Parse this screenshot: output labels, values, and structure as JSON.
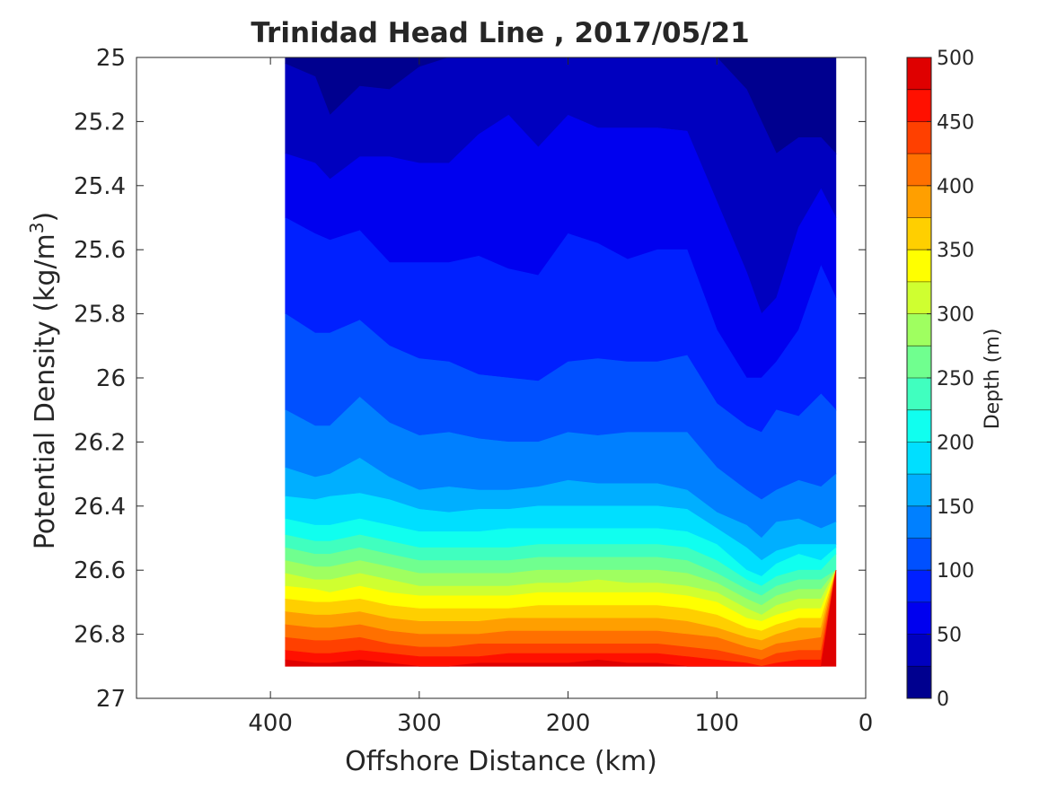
{
  "chart_data": {
    "type": "contour",
    "title": "Trinidad Head Line , 2017/05/21",
    "xlabel": "Offshore Distance (km)",
    "ylabel": "Potential Density (kg/m",
    "ylabel_superscript": "3",
    "ylabel_close": ")",
    "x_reversed": true,
    "y_reversed": true,
    "xlim": [
      490,
      0
    ],
    "ylim": [
      25,
      27
    ],
    "xticks": [
      400,
      300,
      200,
      100,
      0
    ],
    "xtick_labels": [
      "400",
      "300",
      "200",
      "100",
      "0"
    ],
    "yticks": [
      25,
      25.2,
      25.4,
      25.6,
      25.8,
      26,
      26.2,
      26.4,
      26.6,
      26.8,
      27
    ],
    "ytick_labels": [
      "25",
      "25.2",
      "25.4",
      "25.6",
      "25.8",
      "26",
      "26.2",
      "26.4",
      "26.6",
      "26.8",
      "27"
    ],
    "grid": false,
    "colorbar": {
      "label": "Depth (m)",
      "levels": [
        0,
        25,
        50,
        75,
        100,
        125,
        150,
        175,
        200,
        225,
        250,
        275,
        300,
        325,
        350,
        375,
        400,
        425,
        450,
        475,
        500
      ],
      "tick_values": [
        0,
        50,
        100,
        150,
        200,
        250,
        300,
        350,
        400,
        450,
        500
      ],
      "tick_labels": [
        "0",
        "50",
        "100",
        "150",
        "200",
        "250",
        "300",
        "350",
        "400",
        "450",
        "500"
      ],
      "colors": [
        "#00008f",
        "#0000bf",
        "#0000ef",
        "#0020ff",
        "#0050ff",
        "#0080ff",
        "#00afff",
        "#00dfff",
        "#10ffef",
        "#40ffbf",
        "#70ff8f",
        "#9fff60",
        "#cfff30",
        "#ffff00",
        "#ffcf00",
        "#ff9f00",
        "#ff7000",
        "#ff4000",
        "#ff1000",
        "#df0000",
        "#af0000"
      ]
    },
    "distances_km": [
      390,
      370,
      360,
      340,
      320,
      300,
      280,
      260,
      240,
      220,
      200,
      180,
      160,
      140,
      120,
      100,
      80,
      70,
      60,
      45,
      30,
      20
    ],
    "data_bottom_density": 26.9,
    "isopycnal_depth_contours": [
      {
        "depth": 25,
        "density": [
          25.02,
          25.06,
          25.18,
          25.09,
          25.1,
          25.03,
          25.0,
          25.0,
          25.0,
          25.0,
          25.0,
          25.0,
          25.0,
          25.0,
          25.0,
          25.0,
          25.1,
          25.2,
          25.3,
          25.25,
          25.25,
          25.3
        ]
      },
      {
        "depth": 50,
        "density": [
          25.3,
          25.33,
          25.38,
          25.31,
          25.31,
          25.33,
          25.33,
          25.24,
          25.18,
          25.28,
          25.18,
          25.22,
          25.22,
          25.22,
          25.23,
          25.45,
          25.67,
          25.8,
          25.75,
          25.53,
          25.41,
          25.5
        ]
      },
      {
        "depth": 75,
        "density": [
          25.5,
          25.55,
          25.57,
          25.54,
          25.64,
          25.64,
          25.64,
          25.62,
          25.66,
          25.68,
          25.55,
          25.58,
          25.63,
          25.6,
          25.6,
          25.85,
          26.0,
          26.0,
          25.95,
          25.85,
          25.65,
          25.75
        ]
      },
      {
        "depth": 100,
        "density": [
          25.8,
          25.86,
          25.86,
          25.82,
          25.9,
          25.94,
          25.95,
          25.99,
          26.0,
          26.01,
          25.95,
          25.94,
          25.95,
          25.95,
          25.93,
          26.08,
          26.15,
          26.17,
          26.1,
          26.12,
          26.05,
          26.1
        ]
      },
      {
        "depth": 125,
        "density": [
          26.1,
          26.15,
          26.15,
          26.06,
          26.14,
          26.18,
          26.17,
          26.19,
          26.2,
          26.2,
          26.17,
          26.18,
          26.17,
          26.17,
          26.17,
          26.28,
          26.35,
          26.38,
          26.35,
          26.32,
          26.34,
          26.3
        ]
      },
      {
        "depth": 150,
        "density": [
          26.28,
          26.31,
          26.3,
          26.25,
          26.31,
          26.35,
          26.34,
          26.35,
          26.35,
          26.34,
          26.32,
          26.33,
          26.33,
          26.33,
          26.35,
          26.42,
          26.46,
          26.5,
          26.45,
          26.44,
          26.47,
          26.45
        ]
      },
      {
        "depth": 175,
        "density": [
          26.37,
          26.38,
          26.37,
          26.36,
          26.38,
          26.41,
          26.42,
          26.41,
          26.41,
          26.4,
          26.4,
          26.4,
          26.4,
          26.4,
          26.41,
          26.47,
          26.53,
          26.57,
          26.54,
          26.52,
          26.52,
          26.52
        ]
      },
      {
        "depth": 200,
        "density": [
          26.44,
          26.46,
          26.46,
          26.44,
          26.46,
          26.48,
          26.48,
          26.48,
          26.47,
          26.47,
          26.47,
          26.47,
          26.47,
          26.47,
          26.48,
          26.52,
          26.6,
          26.62,
          26.58,
          26.55,
          26.57,
          26.53
        ]
      },
      {
        "depth": 225,
        "density": [
          26.49,
          26.51,
          26.51,
          26.49,
          26.51,
          26.53,
          26.53,
          26.53,
          26.53,
          26.52,
          26.52,
          26.52,
          26.52,
          26.52,
          26.53,
          26.57,
          26.63,
          26.65,
          26.62,
          26.6,
          26.6,
          26.55
        ]
      },
      {
        "depth": 250,
        "density": [
          26.53,
          26.55,
          26.55,
          26.53,
          26.55,
          26.57,
          26.57,
          26.57,
          26.57,
          26.56,
          26.56,
          26.56,
          26.56,
          26.56,
          26.57,
          26.61,
          26.66,
          26.68,
          26.65,
          26.63,
          26.63,
          26.6
        ]
      },
      {
        "depth": 275,
        "density": [
          26.57,
          26.59,
          26.59,
          26.57,
          26.59,
          26.61,
          26.61,
          26.61,
          26.61,
          26.6,
          26.6,
          26.6,
          26.6,
          26.6,
          26.61,
          26.64,
          26.69,
          26.71,
          26.68,
          26.66,
          26.66,
          26.6
        ]
      },
      {
        "depth": 300,
        "density": [
          26.61,
          26.63,
          26.63,
          26.61,
          26.63,
          26.65,
          26.65,
          26.65,
          26.65,
          26.64,
          26.64,
          26.63,
          26.64,
          26.64,
          26.65,
          26.67,
          26.72,
          26.74,
          26.71,
          26.69,
          26.69,
          26.6
        ]
      },
      {
        "depth": 325,
        "density": [
          26.65,
          26.66,
          26.67,
          26.65,
          26.67,
          26.68,
          26.68,
          26.68,
          26.68,
          26.67,
          26.67,
          26.67,
          26.67,
          26.67,
          26.68,
          26.7,
          26.75,
          26.76,
          26.74,
          26.72,
          26.72,
          26.6
        ]
      },
      {
        "depth": 350,
        "density": [
          26.69,
          26.7,
          26.7,
          26.69,
          26.71,
          26.72,
          26.72,
          26.72,
          26.72,
          26.71,
          26.71,
          26.71,
          26.71,
          26.71,
          26.72,
          26.74,
          26.78,
          26.79,
          26.77,
          26.75,
          26.75,
          26.6
        ]
      },
      {
        "depth": 375,
        "density": [
          26.73,
          26.74,
          26.74,
          26.73,
          26.75,
          26.76,
          26.76,
          26.76,
          26.75,
          26.75,
          26.75,
          26.75,
          26.75,
          26.75,
          26.76,
          26.78,
          26.81,
          26.82,
          26.8,
          26.78,
          26.78,
          26.6
        ]
      },
      {
        "depth": 400,
        "density": [
          26.77,
          26.78,
          26.78,
          26.77,
          26.79,
          26.8,
          26.8,
          26.8,
          26.79,
          26.79,
          26.79,
          26.79,
          26.79,
          26.79,
          26.8,
          26.81,
          26.84,
          26.85,
          26.83,
          26.82,
          26.81,
          26.6
        ]
      },
      {
        "depth": 425,
        "density": [
          26.81,
          26.82,
          26.82,
          26.81,
          26.83,
          26.84,
          26.84,
          26.83,
          26.83,
          26.83,
          26.83,
          26.83,
          26.83,
          26.83,
          26.84,
          26.85,
          26.87,
          26.88,
          26.86,
          26.85,
          26.85,
          26.6
        ]
      },
      {
        "depth": 450,
        "density": [
          26.85,
          26.86,
          26.86,
          26.85,
          26.86,
          26.87,
          26.87,
          26.87,
          26.86,
          26.86,
          26.86,
          26.86,
          26.86,
          26.86,
          26.87,
          26.88,
          26.89,
          26.9,
          26.89,
          26.88,
          26.88,
          26.6
        ]
      },
      {
        "depth": 475,
        "density": [
          26.88,
          26.89,
          26.89,
          26.88,
          26.89,
          26.9,
          26.9,
          26.89,
          26.89,
          26.89,
          26.89,
          26.88,
          26.89,
          26.89,
          26.9,
          26.9,
          26.9,
          26.9,
          26.9,
          26.9,
          26.9,
          26.6
        ]
      }
    ]
  }
}
